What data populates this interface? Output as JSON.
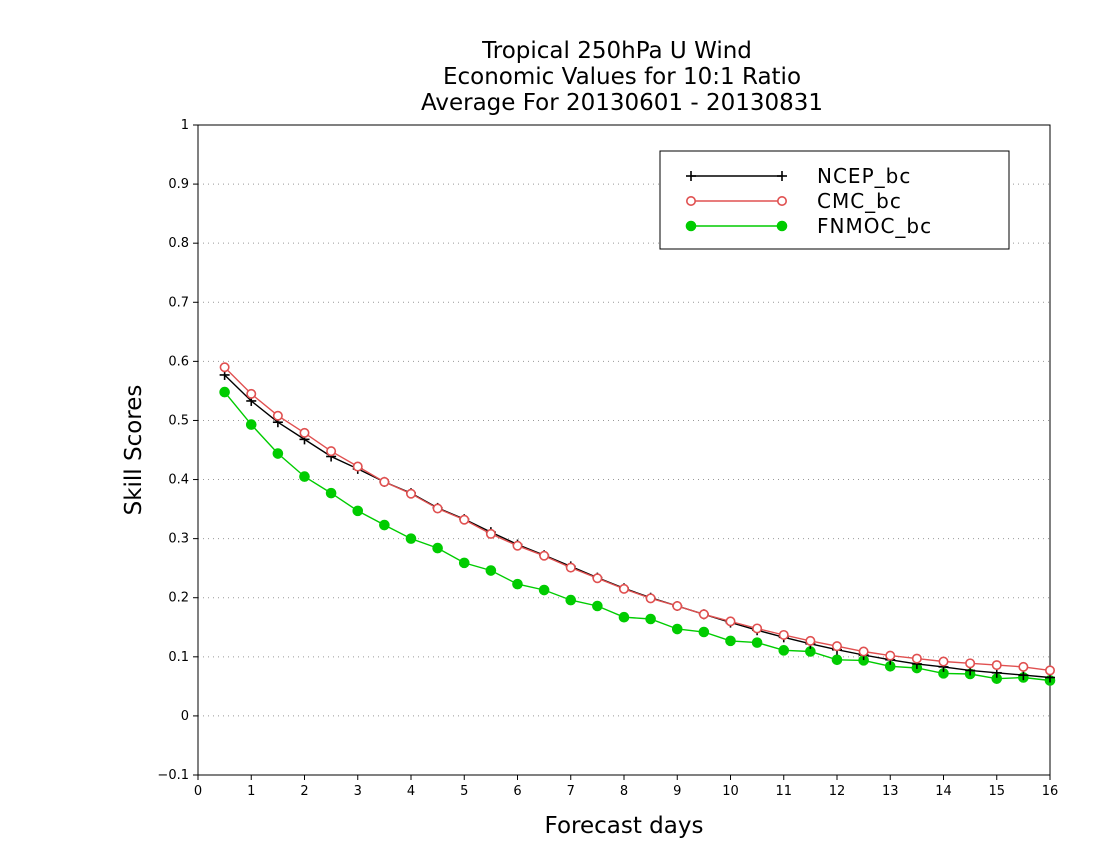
{
  "chart_data": {
    "type": "line",
    "title": [
      "Tropical 250hPa U Wind",
      "Economic Values for 10:1 Ratio",
      "Average For 20130601 - 20130831"
    ],
    "xlabel": "Forecast days",
    "ylabel": "Skill Scores",
    "xlim": [
      0,
      16
    ],
    "ylim": [
      -0.1,
      1
    ],
    "xticks": [
      "0",
      "1",
      "2",
      "3",
      "4",
      "5",
      "6",
      "7",
      "8",
      "9",
      "10",
      "11",
      "12",
      "13",
      "14",
      "15",
      "16"
    ],
    "yticks": [
      "−0.1",
      "0",
      "0.1",
      "0.2",
      "0.3",
      "0.4",
      "0.5",
      "0.6",
      "0.7",
      "0.8",
      "0.9",
      "1"
    ],
    "grid": true,
    "legend_position": "top-right",
    "x": [
      0.5,
      1,
      1.5,
      2,
      2.5,
      3,
      3.5,
      4,
      4.5,
      5,
      5.5,
      6,
      6.5,
      7,
      7.5,
      8,
      8.5,
      9,
      9.5,
      10,
      10.5,
      11,
      11.5,
      12,
      12.5,
      13,
      13.5,
      14,
      14.5,
      15,
      15.5,
      16
    ],
    "series": [
      {
        "name": "NCEP_bc",
        "color": "#000000",
        "marker": "plus",
        "values": [
          0.577,
          0.533,
          0.497,
          0.468,
          0.439,
          0.418,
          0.396,
          0.377,
          0.352,
          0.333,
          0.311,
          0.29,
          0.272,
          0.253,
          0.234,
          0.216,
          0.2,
          0.186,
          0.172,
          0.158,
          0.145,
          0.133,
          0.122,
          0.112,
          0.103,
          0.095,
          0.088,
          0.083,
          0.077,
          0.073,
          0.069,
          0.065
        ]
      },
      {
        "name": "CMC_bc",
        "color": "#e05050",
        "marker": "open-circle",
        "values": [
          0.59,
          0.545,
          0.508,
          0.479,
          0.448,
          0.422,
          0.396,
          0.376,
          0.351,
          0.332,
          0.308,
          0.288,
          0.271,
          0.251,
          0.233,
          0.215,
          0.199,
          0.186,
          0.172,
          0.16,
          0.148,
          0.137,
          0.127,
          0.118,
          0.109,
          0.102,
          0.097,
          0.092,
          0.089,
          0.086,
          0.083,
          0.077
        ]
      },
      {
        "name": "FNMOC_bc",
        "color": "#00cc00",
        "marker": "filled-circle",
        "values": [
          0.548,
          0.493,
          0.444,
          0.405,
          0.377,
          0.347,
          0.323,
          0.3,
          0.284,
          0.259,
          0.246,
          0.223,
          0.213,
          0.196,
          0.186,
          0.167,
          0.164,
          0.147,
          0.142,
          0.127,
          0.124,
          0.111,
          0.109,
          0.095,
          0.094,
          0.084,
          0.081,
          0.072,
          0.071,
          0.063,
          0.065,
          0.06
        ]
      }
    ]
  }
}
